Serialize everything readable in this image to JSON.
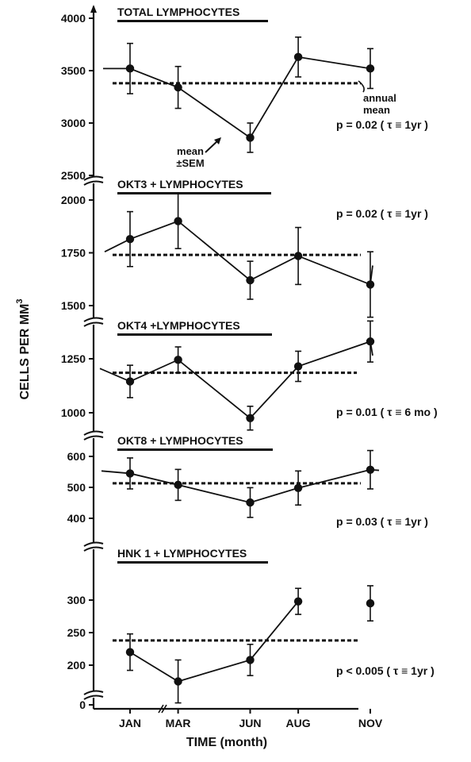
{
  "chart_data": {
    "type": "line",
    "xlabel": "TIME (month)",
    "ylabel": "CELLS PER MM",
    "ylabel_superscript": "3",
    "categories": [
      "JAN",
      "MAR",
      "JUN",
      "AUG",
      "NOV"
    ],
    "x_months": [
      1,
      3,
      6,
      8,
      11
    ],
    "panels": [
      {
        "title": "TOTAL LYMPHOCYTES",
        "pvalue": "p = 0.02 ( τ ≡ 1yr )",
        "ylim": [
          2500,
          4000
        ],
        "yticks": [
          2500,
          3000,
          3500,
          4000
        ],
        "annual_mean": 3380,
        "values": [
          3520,
          3340,
          2860,
          3630,
          3520
        ],
        "sem": [
          240,
          200,
          140,
          190,
          190
        ],
        "annotations": {
          "annual_mean_label_1": "annual",
          "annual_mean_label_2": "mean",
          "error_label_1": "mean",
          "error_label_2": "±SEM"
        }
      },
      {
        "title": "OKT3 + LYMPHOCYTES",
        "pvalue": "p = 0.02 ( τ ≡ 1yr )",
        "ylim": [
          1500,
          2000
        ],
        "yticks": [
          1500,
          1750,
          2000
        ],
        "annual_mean": 1740,
        "values": [
          1815,
          1900,
          1620,
          1735,
          1600
        ],
        "sem": [
          130,
          130,
          90,
          135,
          155
        ]
      },
      {
        "title": "OKT4 +LYMPHOCYTES",
        "pvalue": "p = 0.01 ( τ ≡ 6 mo )",
        "ylim": [
          1000,
          1250
        ],
        "yticks": [
          1000,
          1250
        ],
        "annual_mean": 1185,
        "values": [
          1145,
          1245,
          975,
          1215,
          1330
        ],
        "sem": [
          75,
          60,
          55,
          70,
          95
        ]
      },
      {
        "title": "OKT8 + LYMPHOCYTES",
        "pvalue": "p = 0.03 ( τ ≡ 1yr )",
        "ylim": [
          400,
          600
        ],
        "yticks": [
          400,
          500,
          600
        ],
        "annual_mean": 513,
        "values": [
          545,
          508,
          451,
          498,
          557
        ],
        "sem": [
          50,
          50,
          48,
          55,
          62
        ]
      },
      {
        "title": "HNK 1 + LYMPHOCYTES",
        "pvalue": "p < 0.005 ( τ ≡ 1yr )",
        "ylim": [
          0,
          300
        ],
        "yticks": [
          0,
          200,
          250,
          300
        ],
        "annual_mean": 238,
        "values": [
          220,
          175,
          208,
          298,
          295
        ],
        "sem": [
          28,
          33,
          24,
          20,
          27
        ]
      }
    ]
  }
}
